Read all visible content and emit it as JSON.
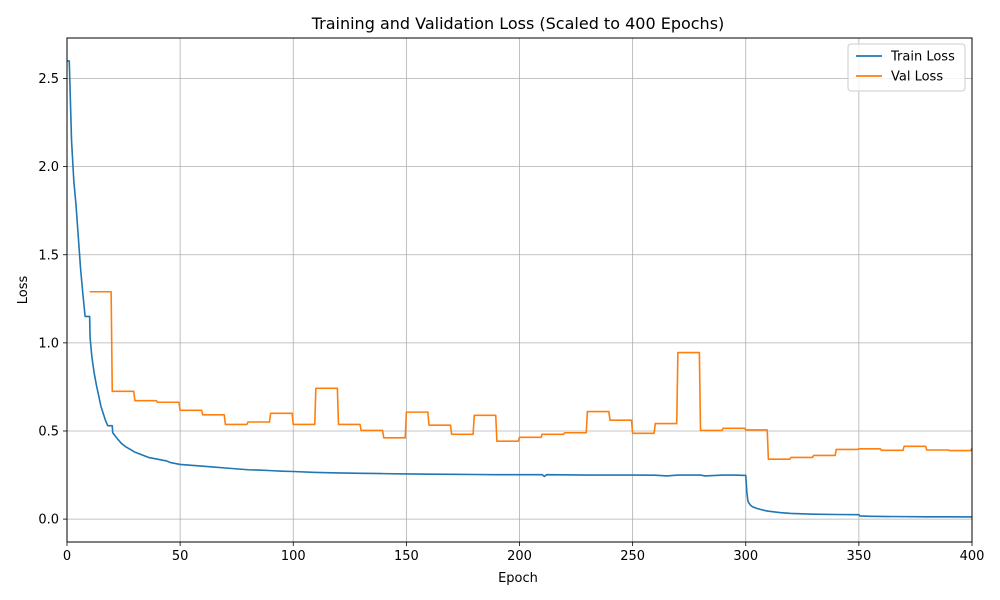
{
  "chart_data": {
    "type": "line",
    "title": "Training and Validation Loss (Scaled to 400 Epochs)",
    "xlabel": "Epoch",
    "ylabel": "Loss",
    "xlim": [
      0,
      400
    ],
    "ylim": [
      -0.13,
      2.73
    ],
    "xticks": [
      0,
      50,
      100,
      150,
      200,
      250,
      300,
      350,
      400
    ],
    "yticks": [
      0.0,
      0.5,
      1.0,
      1.5,
      2.0,
      2.5
    ],
    "xtick_labels": [
      "0",
      "50",
      "100",
      "150",
      "200",
      "250",
      "300",
      "350",
      "400"
    ],
    "ytick_labels": [
      "0.0",
      "0.5",
      "1.0",
      "1.5",
      "2.0",
      "2.5"
    ],
    "grid": true,
    "legend_position": "top-right",
    "series": [
      {
        "name": "Train Loss",
        "color": "#1f77b4",
        "x": [
          0,
          1,
          2,
          3,
          4,
          5,
          6,
          7,
          8,
          9,
          10,
          10.2,
          11,
          12,
          13,
          14,
          15,
          16,
          17,
          18,
          19,
          20,
          20.2,
          22,
          24,
          26,
          28,
          30,
          32,
          34,
          36,
          38,
          40,
          42,
          44,
          46,
          48,
          50,
          55,
          60,
          65,
          70,
          75,
          80,
          85,
          90,
          95,
          100,
          110,
          120,
          130,
          140,
          150,
          160,
          170,
          180,
          190,
          200,
          210,
          211,
          212,
          220,
          230,
          240,
          250,
          260,
          265,
          270,
          280,
          282,
          290,
          295,
          300,
          300.5,
          301,
          302,
          303,
          305,
          308,
          310,
          315,
          320,
          330,
          340,
          350,
          350.5,
          355,
          360,
          370,
          380,
          390,
          400
        ],
        "y": [
          2.6,
          2.6,
          2.15,
          1.92,
          1.78,
          1.6,
          1.42,
          1.28,
          1.15,
          1.15,
          1.15,
          1.03,
          0.92,
          0.83,
          0.76,
          0.7,
          0.64,
          0.6,
          0.56,
          0.53,
          0.53,
          0.53,
          0.49,
          0.46,
          0.43,
          0.41,
          0.395,
          0.38,
          0.37,
          0.36,
          0.35,
          0.345,
          0.34,
          0.335,
          0.33,
          0.32,
          0.315,
          0.31,
          0.305,
          0.3,
          0.295,
          0.29,
          0.285,
          0.28,
          0.278,
          0.275,
          0.272,
          0.27,
          0.265,
          0.262,
          0.26,
          0.258,
          0.256,
          0.255,
          0.254,
          0.253,
          0.252,
          0.252,
          0.252,
          0.242,
          0.252,
          0.251,
          0.25,
          0.25,
          0.25,
          0.249,
          0.245,
          0.25,
          0.25,
          0.245,
          0.25,
          0.25,
          0.248,
          0.15,
          0.1,
          0.08,
          0.07,
          0.06,
          0.05,
          0.045,
          0.037,
          0.032,
          0.028,
          0.026,
          0.025,
          0.018,
          0.016,
          0.015,
          0.014,
          0.013,
          0.013,
          0.012
        ]
      },
      {
        "name": "Val Loss",
        "color": "#ff7f0e",
        "x": [
          10,
          19.5,
          20,
          29.5,
          30,
          39.5,
          40,
          49.5,
          50,
          59.5,
          60,
          69.5,
          70,
          79.5,
          80,
          89.5,
          90,
          99.5,
          100,
          109.5,
          110,
          119.5,
          120,
          129.5,
          130,
          139.5,
          140,
          149.5,
          150,
          159.5,
          160,
          169.5,
          170,
          179.5,
          180,
          189.5,
          190,
          199.5,
          200,
          209.5,
          210,
          219.5,
          220,
          229.5,
          230,
          239.5,
          240,
          249.5,
          250,
          259.5,
          260,
          269.5,
          270,
          279.5,
          280,
          289.5,
          290,
          299.5,
          300,
          309.5,
          310,
          319.5,
          320,
          329.5,
          330,
          339.5,
          340,
          349.5,
          350,
          359.5,
          360,
          369.5,
          370,
          379.5,
          380,
          389.5,
          390,
          399.5,
          400
        ],
        "y": [
          1.29,
          1.29,
          0.725,
          0.725,
          0.672,
          0.672,
          0.663,
          0.663,
          0.617,
          0.617,
          0.592,
          0.592,
          0.537,
          0.537,
          0.551,
          0.551,
          0.6,
          0.6,
          0.537,
          0.537,
          0.742,
          0.742,
          0.537,
          0.537,
          0.503,
          0.503,
          0.461,
          0.461,
          0.607,
          0.607,
          0.533,
          0.533,
          0.481,
          0.481,
          0.589,
          0.589,
          0.442,
          0.442,
          0.464,
          0.464,
          0.481,
          0.481,
          0.49,
          0.49,
          0.61,
          0.61,
          0.561,
          0.561,
          0.487,
          0.487,
          0.542,
          0.542,
          0.945,
          0.945,
          0.503,
          0.503,
          0.515,
          0.515,
          0.506,
          0.506,
          0.34,
          0.34,
          0.35,
          0.35,
          0.361,
          0.361,
          0.395,
          0.395,
          0.399,
          0.399,
          0.39,
          0.39,
          0.413,
          0.413,
          0.392,
          0.392,
          0.389,
          0.389,
          0.403
        ]
      }
    ]
  }
}
